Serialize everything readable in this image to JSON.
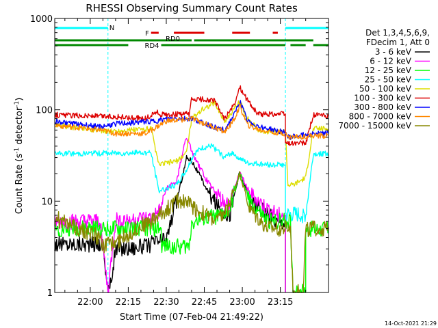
{
  "chart_data": {
    "type": "line",
    "title": "RHESSI Observing Summary Count Rates",
    "xlabel": "Start Time (07-Feb-04 21:49:22)",
    "ylabel": "Count Rate (s",
    "ylabel_sup": "-1",
    "ylabel_tail": " detector",
    "ylabel_end": ")",
    "ylog": true,
    "ylim": [
      1,
      1000
    ],
    "xlim_minutes": [
      -14,
      94
    ],
    "yticks": [
      {
        "v": 1,
        "label": "1"
      },
      {
        "v": 10,
        "label": "10"
      },
      {
        "v": 100,
        "label": "100"
      },
      {
        "v": 1000,
        "label": "1000"
      }
    ],
    "xticks": [
      {
        "m": 0,
        "label": "22:00"
      },
      {
        "m": 15,
        "label": "22:15"
      },
      {
        "m": 30,
        "label": "22:30"
      },
      {
        "m": 45,
        "label": "22:45"
      },
      {
        "m": 60,
        "label": "23:00"
      },
      {
        "m": 75,
        "label": "23:15"
      }
    ],
    "legend_header": [
      "Det 1,3,4,5,6,9,",
      "FDecim 1, Att 0"
    ],
    "flags": {
      "night_label": "N",
      "flare_label": "F",
      "rd0_label": "RD0",
      "rd4_label": "RD4",
      "cyan_color": "#00ffff",
      "red_color": "#dd0000",
      "green_color": "#008800",
      "night": [
        [
          -14,
          7
        ],
        [
          77,
          94
        ]
      ],
      "flare": [
        [
          24,
          27
        ],
        [
          33,
          45
        ],
        [
          56,
          63
        ],
        [
          72,
          74
        ]
      ],
      "rd0": [
        [
          -14,
          40
        ],
        [
          41,
          88
        ]
      ],
      "rd4": [
        [
          -14,
          15
        ],
        [
          28,
          40
        ],
        [
          40,
          77
        ],
        [
          79,
          85
        ],
        [
          88,
          94
        ]
      ]
    },
    "series": [
      {
        "name": "3 - 6 keV",
        "color": "#000000",
        "points": [
          [
            -14,
            3.4
          ],
          [
            5,
            3.4
          ],
          [
            7,
            1.0
          ],
          [
            8,
            1.2
          ],
          [
            10,
            3.0
          ],
          [
            22,
            3.2
          ],
          [
            26,
            3.6
          ],
          [
            30,
            3.8
          ],
          [
            34,
            10
          ],
          [
            37,
            22
          ],
          [
            38,
            30
          ],
          [
            40,
            28
          ],
          [
            47,
            12
          ],
          [
            50,
            9
          ],
          [
            55,
            7
          ],
          [
            59,
            21
          ],
          [
            63,
            10
          ],
          [
            70,
            7
          ],
          [
            74,
            6
          ],
          [
            77,
            6
          ],
          [
            77,
            1
          ]
        ]
      },
      {
        "name": "6 - 12 keV",
        "color": "#ff00ff",
        "points": [
          [
            -14,
            5.8
          ],
          [
            4,
            6.0
          ],
          [
            7,
            1.0
          ],
          [
            10,
            6.2
          ],
          [
            24,
            6.4
          ],
          [
            28,
            8
          ],
          [
            30,
            14
          ],
          [
            34,
            16
          ],
          [
            37,
            40
          ],
          [
            38,
            50
          ],
          [
            41,
            30
          ],
          [
            46,
            17
          ],
          [
            52,
            10
          ],
          [
            55,
            9
          ],
          [
            59,
            21
          ],
          [
            63,
            12
          ],
          [
            70,
            8
          ],
          [
            74,
            7
          ],
          [
            77,
            7
          ],
          [
            77,
            1
          ]
        ]
      },
      {
        "name": "12 - 25 keV",
        "color": "#00ff00",
        "points": [
          [
            -14,
            5
          ],
          [
            20,
            5
          ],
          [
            28,
            5
          ],
          [
            28,
            3.2
          ],
          [
            39,
            3.2
          ],
          [
            40,
            6
          ],
          [
            52,
            7
          ],
          [
            55,
            8
          ],
          [
            59,
            20
          ],
          [
            63,
            10
          ],
          [
            70,
            6
          ],
          [
            76,
            6
          ],
          [
            79,
            6
          ],
          [
            80,
            1
          ],
          [
            85,
            1
          ],
          [
            85,
            5
          ],
          [
            94,
            5
          ]
        ]
      },
      {
        "name": "25 - 50 keV",
        "color": "#00ffff",
        "points": [
          [
            -14,
            33
          ],
          [
            24,
            34
          ],
          [
            27,
            13
          ],
          [
            34,
            15
          ],
          [
            38,
            22
          ],
          [
            41,
            33
          ],
          [
            44,
            38
          ],
          [
            48,
            40
          ],
          [
            53,
            30
          ],
          [
            56,
            34
          ],
          [
            60,
            28
          ],
          [
            62,
            26
          ],
          [
            72,
            25
          ],
          [
            77,
            25
          ],
          [
            77,
            7
          ],
          [
            85,
            7
          ],
          [
            88,
            33
          ],
          [
            94,
            33
          ]
        ]
      },
      {
        "name": "50 - 100 keV",
        "color": "#dddd00",
        "points": [
          [
            -14,
            68
          ],
          [
            8,
            58
          ],
          [
            24,
            62
          ],
          [
            27,
            25
          ],
          [
            35,
            28
          ],
          [
            38,
            35
          ],
          [
            40,
            80
          ],
          [
            44,
            100
          ],
          [
            49,
            120
          ],
          [
            53,
            75
          ],
          [
            56,
            95
          ],
          [
            59,
            125
          ],
          [
            62,
            80
          ],
          [
            67,
            58
          ],
          [
            77,
            58
          ],
          [
            78,
            15
          ],
          [
            80,
            15
          ],
          [
            85,
            18
          ],
          [
            88,
            62
          ],
          [
            94,
            62
          ]
        ]
      },
      {
        "name": "100 - 300 keV",
        "color": "#dd0000",
        "points": [
          [
            -14,
            88
          ],
          [
            4,
            85
          ],
          [
            10,
            84
          ],
          [
            22,
            80
          ],
          [
            26,
            95
          ],
          [
            28,
            88
          ],
          [
            39,
            90
          ],
          [
            40,
            128
          ],
          [
            45,
            130
          ],
          [
            49,
            125
          ],
          [
            53,
            80
          ],
          [
            57,
            115
          ],
          [
            59,
            180
          ],
          [
            61,
            140
          ],
          [
            66,
            90
          ],
          [
            77,
            90
          ],
          [
            77,
            43
          ],
          [
            85,
            43
          ],
          [
            88,
            88
          ],
          [
            94,
            85
          ]
        ]
      },
      {
        "name": "300 - 800 keV",
        "color": "#0000ff",
        "points": [
          [
            -14,
            75
          ],
          [
            4,
            65
          ],
          [
            10,
            70
          ],
          [
            25,
            75
          ],
          [
            32,
            80
          ],
          [
            40,
            80
          ],
          [
            48,
            66
          ],
          [
            53,
            60
          ],
          [
            57,
            90
          ],
          [
            59,
            125
          ],
          [
            62,
            75
          ],
          [
            67,
            65
          ],
          [
            77,
            56
          ],
          [
            78,
            50
          ],
          [
            88,
            55
          ],
          [
            94,
            55
          ]
        ]
      },
      {
        "name": "800 - 7000 keV",
        "color": "#ff8800",
        "points": [
          [
            -14,
            68
          ],
          [
            4,
            60
          ],
          [
            10,
            55
          ],
          [
            22,
            55
          ],
          [
            30,
            75
          ],
          [
            40,
            80
          ],
          [
            48,
            66
          ],
          [
            53,
            57
          ],
          [
            57,
            80
          ],
          [
            59,
            110
          ],
          [
            62,
            68
          ],
          [
            67,
            60
          ],
          [
            77,
            55
          ],
          [
            78,
            50
          ],
          [
            88,
            52
          ],
          [
            94,
            52
          ]
        ]
      },
      {
        "name": "7000 - 15000 keV",
        "color": "#888800",
        "points": [
          [
            -14,
            6.5
          ],
          [
            2,
            4.2
          ],
          [
            6,
            3.2
          ],
          [
            12,
            3.8
          ],
          [
            18,
            5
          ],
          [
            24,
            6
          ],
          [
            30,
            8
          ],
          [
            34,
            10
          ],
          [
            38,
            10
          ],
          [
            42,
            8
          ],
          [
            50,
            6
          ],
          [
            54,
            8
          ],
          [
            59,
            20
          ],
          [
            63,
            8
          ],
          [
            70,
            5
          ],
          [
            76,
            5
          ],
          [
            79,
            5
          ],
          [
            80,
            1
          ],
          [
            84,
            1
          ],
          [
            85,
            5
          ],
          [
            94,
            5
          ]
        ]
      }
    ],
    "footer_timestamp": "14-Oct-2021 21:29"
  }
}
